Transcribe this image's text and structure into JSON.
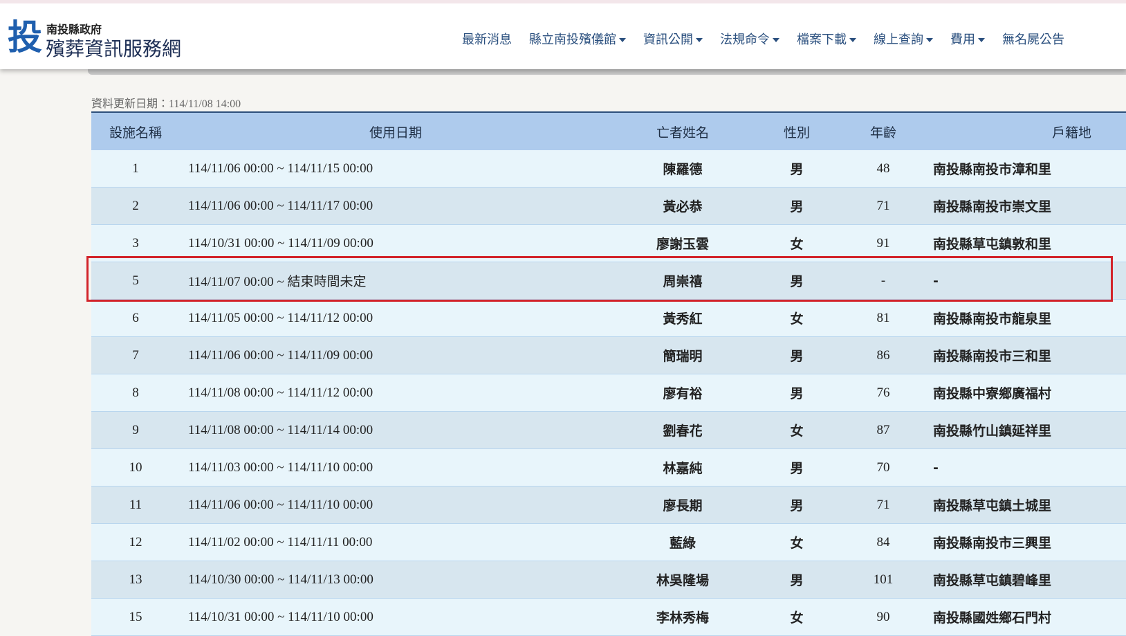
{
  "header": {
    "org": "南投縣政府",
    "site_title": "殯葬資訊服務網",
    "logo_char": "投"
  },
  "nav": [
    "最新消息",
    "縣立南投殯儀館",
    "資訊公開",
    "法規命令",
    "檔案下載",
    "線上查詢",
    "費用",
    "無名屍公告"
  ],
  "nav_dropdown": [
    false,
    true,
    true,
    true,
    true,
    true,
    true,
    false
  ],
  "update_info": "資料更新日期：114/11/08 14:00",
  "table": {
    "columns": [
      "設施名稱",
      "使用日期",
      "亡者姓名",
      "性別",
      "年齡",
      "戶籍地"
    ],
    "rows": [
      [
        1,
        "114/11/06 00:00 ~ 114/11/15 00:00",
        "陳羅德",
        "男",
        48,
        "南投縣南投市漳和里"
      ],
      [
        2,
        "114/11/06 00:00 ~ 114/11/17 00:00",
        "黃必恭",
        "男",
        71,
        "南投縣南投市崇文里"
      ],
      [
        3,
        "114/10/31 00:00 ~ 114/11/09 00:00",
        "廖謝玉雲",
        "女",
        91,
        "南投縣草屯鎮敦和里"
      ],
      [
        5,
        "114/11/07 00:00 ~ 結束時間未定",
        "周崇禧",
        "男",
        "-",
        "-"
      ],
      [
        6,
        "114/11/05 00:00 ~ 114/11/12 00:00",
        "黃秀紅",
        "女",
        81,
        "南投縣南投市龍泉里"
      ],
      [
        7,
        "114/11/06 00:00 ~ 114/11/09 00:00",
        "簡瑞明",
        "男",
        86,
        "南投縣南投市三和里"
      ],
      [
        8,
        "114/11/08 00:00 ~ 114/11/12 00:00",
        "廖有裕",
        "男",
        76,
        "南投縣中寮鄉廣福村"
      ],
      [
        9,
        "114/11/08 00:00 ~ 114/11/14 00:00",
        "劉春花",
        "女",
        87,
        "南投縣竹山鎮延祥里"
      ],
      [
        10,
        "114/11/03 00:00 ~ 114/11/10 00:00",
        "林嘉純",
        "男",
        70,
        "-"
      ],
      [
        11,
        "114/11/06 00:00 ~ 114/11/10 00:00",
        "廖長期",
        "男",
        71,
        "南投縣草屯鎮土城里"
      ],
      [
        12,
        "114/11/02 00:00 ~ 114/11/11 00:00",
        "藍綠",
        "女",
        84,
        "南投縣南投市三興里"
      ],
      [
        13,
        "114/10/30 00:00 ~ 114/11/13 00:00",
        "林吳隆場",
        "男",
        101,
        "南投縣草屯鎮碧峰里"
      ],
      [
        15,
        "114/10/31 00:00 ~ 114/11/10 00:00",
        "李林秀梅",
        "女",
        90,
        "南投縣國姓鄉石門村"
      ]
    ],
    "highlighted_row": 3
  }
}
